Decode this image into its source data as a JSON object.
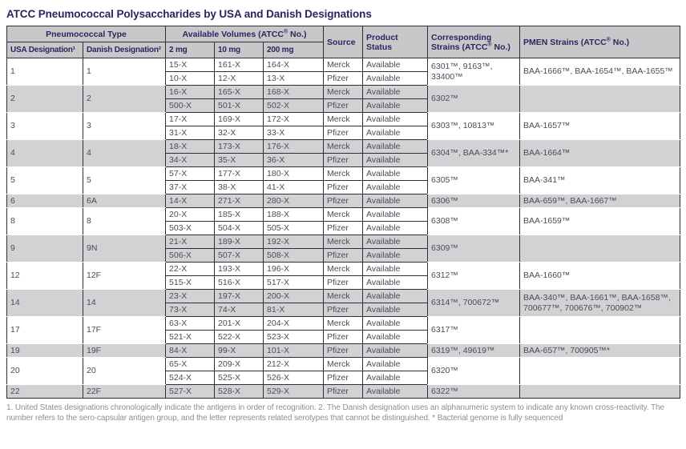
{
  "title": "ATCC Pneumococcal Polysaccharides by USA and Danish Designations",
  "colors": {
    "title_text": "#29265f",
    "header_bg": "#c8c8cb",
    "shaded_row_bg": "#d2d2d4",
    "border": "#2f2e33",
    "body_text": "#4c4b58",
    "footnote_text": "#8e8e92"
  },
  "table": {
    "header": {
      "pneumococcal_type": "Pneumococcal Type",
      "usa_designation": "USA Designation¹",
      "danish_designation": "Danish Designation²",
      "available_volumes": "Available Volumes (ATCC® No.)",
      "vol_2mg": "2 mg",
      "vol_10mg": "10 mg",
      "vol_200mg": "200 mg",
      "source": "Source",
      "product_status": "Product Status",
      "corresponding_strains": "Corresponding Strains (ATCC® No.)",
      "pmen_strains": "PMEN Strains (ATCC® No.)"
    },
    "groups": [
      {
        "usa": "1",
        "danish": "1",
        "rows": [
          {
            "v2": "15-X",
            "v10": "161-X",
            "v200": "164-X",
            "source": "Merck",
            "status": "Available"
          },
          {
            "v2": "10-X",
            "v10": "12-X",
            "v200": "13-X",
            "source": "Pfizer",
            "status": "Available"
          }
        ],
        "strains": "6301™, 9163™, 33400™",
        "pmen": "BAA-1666™, BAA-1654™, BAA-1655™"
      },
      {
        "usa": "2",
        "danish": "2",
        "rows": [
          {
            "v2": "16-X",
            "v10": "165-X",
            "v200": "168-X",
            "source": "Merck",
            "status": "Available"
          },
          {
            "v2": "500-X",
            "v10": "501-X",
            "v200": "502-X",
            "source": "Pfizer",
            "status": "Available"
          }
        ],
        "strains": "6302™",
        "pmen": ""
      },
      {
        "usa": "3",
        "danish": "3",
        "rows": [
          {
            "v2": "17-X",
            "v10": "169-X",
            "v200": "172-X",
            "source": "Merck",
            "status": "Available"
          },
          {
            "v2": "31-X",
            "v10": "32-X",
            "v200": "33-X",
            "source": "Pfizer",
            "status": "Available"
          }
        ],
        "strains": "6303™, 10813™",
        "pmen": "BAA-1657™"
      },
      {
        "usa": "4",
        "danish": "4",
        "rows": [
          {
            "v2": "18-X",
            "v10": "173-X",
            "v200": "176-X",
            "source": "Merck",
            "status": "Available"
          },
          {
            "v2": "34-X",
            "v10": "35-X",
            "v200": "36-X",
            "source": "Pfizer",
            "status": "Available"
          }
        ],
        "strains": "6304™, BAA-334™*",
        "pmen": "BAA-1664™"
      },
      {
        "usa": "5",
        "danish": "5",
        "rows": [
          {
            "v2": "57-X",
            "v10": "177-X",
            "v200": "180-X",
            "source": "Merck",
            "status": "Available"
          },
          {
            "v2": "37-X",
            "v10": "38-X",
            "v200": "41-X",
            "source": "Pfizer",
            "status": "Available"
          }
        ],
        "strains": "6305™",
        "pmen": "BAA-341™"
      },
      {
        "usa": "6",
        "danish": "6A",
        "rows": [
          {
            "v2": "14-X",
            "v10": "271-X",
            "v200": "280-X",
            "source": "Pfizer",
            "status": "Available"
          }
        ],
        "strains": "6306™",
        "pmen": "BAA-659™, BAA-1667™"
      },
      {
        "usa": "8",
        "danish": "8",
        "rows": [
          {
            "v2": "20-X",
            "v10": "185-X",
            "v200": "188-X",
            "source": "Merck",
            "status": "Available"
          },
          {
            "v2": "503-X",
            "v10": "504-X",
            "v200": "505-X",
            "source": "Pfizer",
            "status": "Available"
          }
        ],
        "strains": "6308™",
        "pmen": "BAA-1659™"
      },
      {
        "usa": "9",
        "danish": "9N",
        "rows": [
          {
            "v2": "21-X",
            "v10": "189-X",
            "v200": "192-X",
            "source": "Merck",
            "status": "Available"
          },
          {
            "v2": "506-X",
            "v10": "507-X",
            "v200": "508-X",
            "source": "Pfizer",
            "status": "Available"
          }
        ],
        "strains": "6309™",
        "pmen": ""
      },
      {
        "usa": "12",
        "danish": "12F",
        "rows": [
          {
            "v2": "22-X",
            "v10": "193-X",
            "v200": "196-X",
            "source": "Merck",
            "status": "Available"
          },
          {
            "v2": "515-X",
            "v10": "516-X",
            "v200": "517-X",
            "source": "Pfizer",
            "status": "Available"
          }
        ],
        "strains": "6312™",
        "pmen": "BAA-1660™"
      },
      {
        "usa": "14",
        "danish": "14",
        "rows": [
          {
            "v2": "23-X",
            "v10": "197-X",
            "v200": "200-X",
            "source": "Merck",
            "status": "Available"
          },
          {
            "v2": "73-X",
            "v10": "74-X",
            "v200": "81-X",
            "source": "Pfizer",
            "status": "Available"
          }
        ],
        "strains": "6314™, 700672™",
        "pmen": "BAA-340™, BAA-1661™, BAA-1658™, 700677™, 700676™, 700902™"
      },
      {
        "usa": "17",
        "danish": "17F",
        "rows": [
          {
            "v2": "63-X",
            "v10": "201-X",
            "v200": "204-X",
            "source": "Merck",
            "status": "Available"
          },
          {
            "v2": "521-X",
            "v10": "522-X",
            "v200": "523-X",
            "source": "Pfizer",
            "status": "Available"
          }
        ],
        "strains": "6317™",
        "pmen": ""
      },
      {
        "usa": "19",
        "danish": "19F",
        "rows": [
          {
            "v2": "84-X",
            "v10": "99-X",
            "v200": "101-X",
            "source": "Pfizer",
            "status": "Available"
          }
        ],
        "strains": "6319™, 49619™",
        "pmen": "BAA-657™, 700905™*"
      },
      {
        "usa": "20",
        "danish": "20",
        "rows": [
          {
            "v2": "65-X",
            "v10": "209-X",
            "v200": "212-X",
            "source": "Merck",
            "status": "Available"
          },
          {
            "v2": "524-X",
            "v10": "525-X",
            "v200": "526-X",
            "source": "Pfizer",
            "status": "Available"
          }
        ],
        "strains": "6320™",
        "pmen": ""
      },
      {
        "usa": "22",
        "danish": "22F",
        "rows": [
          {
            "v2": "527-X",
            "v10": "528-X",
            "v200": "529-X",
            "source": "Pfizer",
            "status": "Available"
          }
        ],
        "strains": "6322™",
        "pmen": ""
      }
    ]
  },
  "footnote": "1. United States designations chronologically indicate the antigens in order of recognition. 2. The Danish designation uses an alphanumeric system to indicate any known cross-reactivity. The number refers to the sero-capsular antigen group, and the letter represents related serotypes that  cannot be distinguished. * Bacterial genome is fully sequenced"
}
